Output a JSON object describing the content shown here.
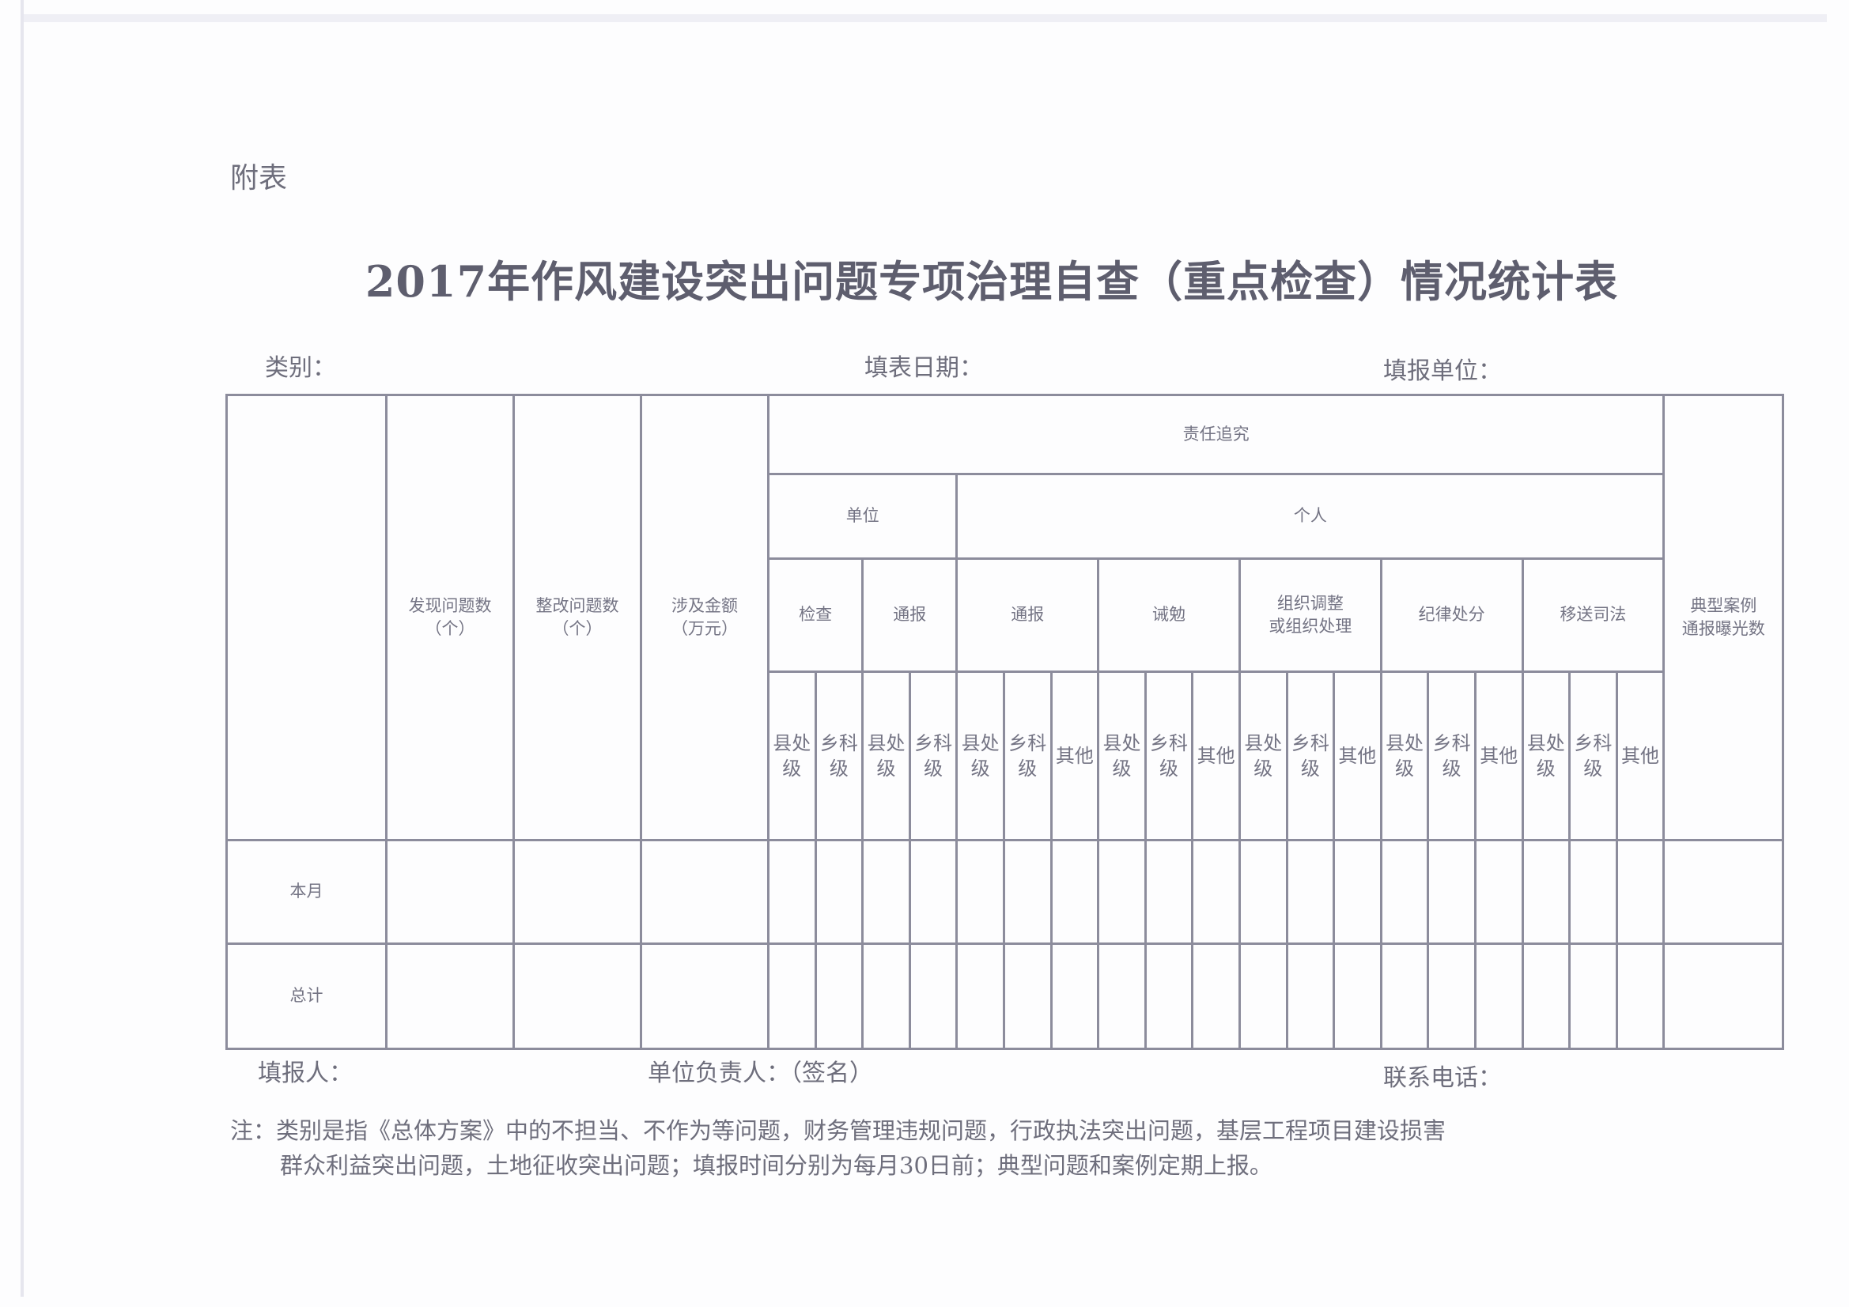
{
  "appendix_label": "附表",
  "title": "2017年作风建设突出问题专项治理自查（重点检查）情况统计表",
  "meta": {
    "category": "类别：",
    "fill_date": "填表日期：",
    "reporting_unit": "填报单位："
  },
  "table": {
    "headers": {
      "found": "发现问题数（个）",
      "rectified": "整改问题数（个）",
      "amount": "涉及金额（万元）",
      "accountability": "责任追究",
      "unit": "单位",
      "individual": "个人",
      "typical": "典型案例通报曝光数",
      "groups": [
        "检查",
        "通报",
        "通报",
        "诫勉",
        "组织调整或组织处理",
        "纪律处分",
        "移送司法"
      ],
      "sub": [
        "县处级",
        "乡科级",
        "县处级",
        "乡科级",
        "县处级",
        "乡科级",
        "其他",
        "县处级",
        "乡科级",
        "其他",
        "县处级",
        "乡科级",
        "其他",
        "县处级",
        "乡科级",
        "其他",
        "县处级",
        "乡科级",
        "其他"
      ]
    },
    "rows": [
      {
        "label": "本月"
      },
      {
        "label": "总计"
      }
    ]
  },
  "footer": {
    "filler": "填报人：",
    "unit_head": "单位负责人：（签名）",
    "phone": "联系电话："
  },
  "note": {
    "line1": "注：类别是指《总体方案》中的不担当、不作为等问题，财务管理违规问题，行政执法突出问题，基层工程项目建设损害",
    "line2": "群众利益突出问题，土地征收突出问题；填报时间分别为每月30日前；典型问题和案例定期上报。"
  }
}
